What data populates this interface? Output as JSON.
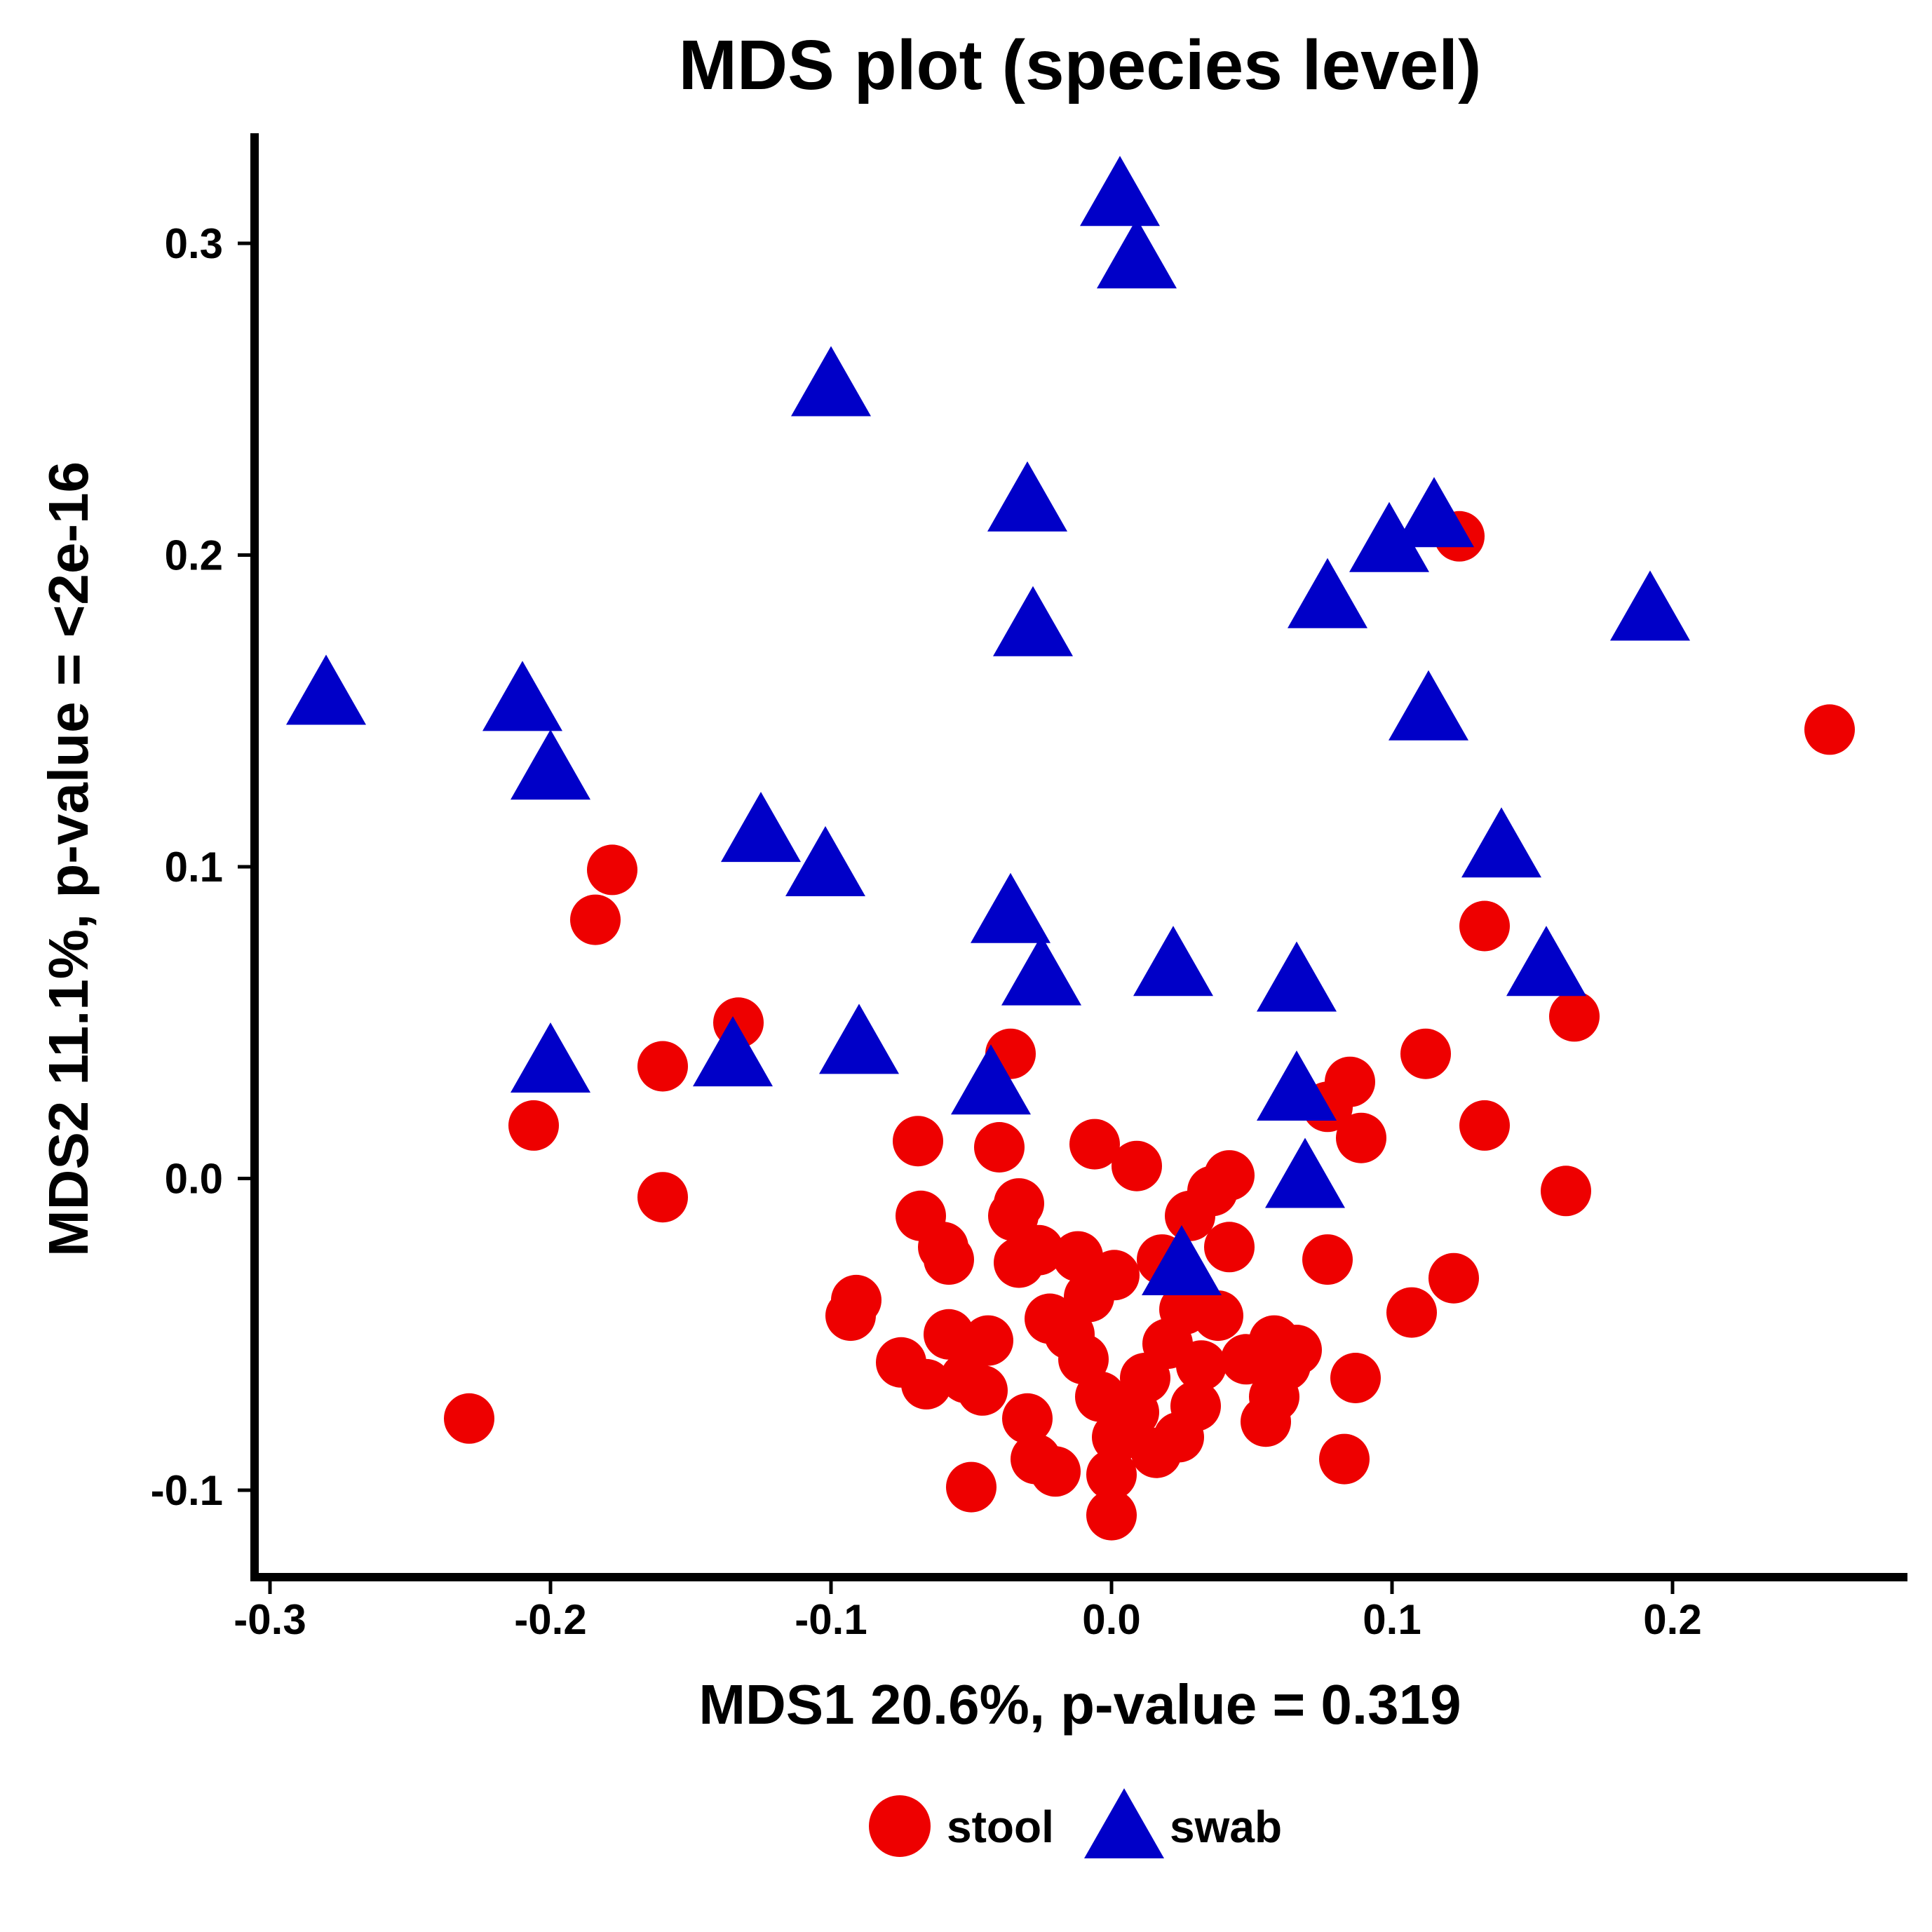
{
  "chart_data": {
    "type": "scatter",
    "title": "MDS plot (species level)",
    "xlabel": "MDS1 20.6%, p-value = 0.319",
    "ylabel": "MDS2 11.1%, p-value = <2e-16",
    "xlim": [
      -0.305,
      0.285
    ],
    "ylim": [
      -0.128,
      0.335
    ],
    "xticks": [
      -0.3,
      -0.2,
      -0.1,
      0.0,
      0.1,
      0.2
    ],
    "xtick_labels": [
      "-0.3",
      "-0.2",
      "-0.1",
      "0.0",
      "0.1",
      "0.2"
    ],
    "yticks": [
      -0.1,
      0.0,
      0.1,
      0.2,
      0.3
    ],
    "ytick_labels": [
      "-0.1",
      "0.0",
      "0.1",
      "0.2",
      "0.3"
    ],
    "grid": false,
    "legend_position": "bottom",
    "series": [
      {
        "name": "stool",
        "marker": "circle",
        "color": "#ee0000",
        "points": [
          [
            0.256,
            0.144
          ],
          [
            0.124,
            0.206
          ],
          [
            0.165,
            0.052
          ],
          [
            0.133,
            0.081
          ],
          [
            0.112,
            0.04
          ],
          [
            0.133,
            0.017
          ],
          [
            0.162,
            -0.004
          ],
          [
            0.122,
            -0.032
          ],
          [
            0.107,
            -0.043
          ],
          [
            0.087,
            -0.064
          ],
          [
            0.083,
            -0.09
          ],
          [
            0.077,
            0.023
          ],
          [
            0.085,
            0.031
          ],
          [
            0.089,
            0.013
          ],
          [
            0.077,
            -0.026
          ],
          [
            0.055,
            -0.078
          ],
          [
            0.062,
            -0.06
          ],
          [
            0.058,
            -0.052
          ],
          [
            0.066,
            -0.055
          ],
          [
            0.058,
            -0.07
          ],
          [
            0.048,
            -0.058
          ],
          [
            0.042,
            0.001
          ],
          [
            0.036,
            -0.004
          ],
          [
            0.042,
            -0.022
          ],
          [
            0.038,
            -0.044
          ],
          [
            0.032,
            -0.06
          ],
          [
            0.03,
            -0.073
          ],
          [
            0.024,
            -0.083
          ],
          [
            0.016,
            -0.088
          ],
          [
            0.008,
            -0.075
          ],
          [
            0.012,
            -0.064
          ],
          [
            0.02,
            -0.053
          ],
          [
            0.026,
            -0.042
          ],
          [
            0.018,
            -0.026
          ],
          [
            0.028,
            -0.012
          ],
          [
            0.009,
            0.004
          ],
          [
            -0.006,
            0.011
          ],
          [
            0.001,
            -0.031
          ],
          [
            -0.008,
            -0.038
          ],
          [
            -0.012,
            -0.025
          ],
          [
            -0.015,
            -0.05
          ],
          [
            -0.01,
            -0.058
          ],
          [
            -0.004,
            -0.07
          ],
          [
            0.002,
            -0.083
          ],
          [
            0.0,
            -0.095
          ],
          [
            0.0,
            -0.108
          ],
          [
            -0.02,
            -0.094
          ],
          [
            -0.027,
            -0.09
          ],
          [
            -0.03,
            -0.077
          ],
          [
            -0.022,
            -0.045
          ],
          [
            -0.026,
            -0.023
          ],
          [
            -0.033,
            -0.027
          ],
          [
            -0.035,
            -0.012
          ],
          [
            -0.033,
            -0.008
          ],
          [
            -0.04,
            0.01
          ],
          [
            -0.036,
            0.04
          ],
          [
            -0.05,
            -0.099
          ],
          [
            -0.046,
            -0.068
          ],
          [
            -0.044,
            -0.052
          ],
          [
            -0.052,
            -0.064
          ],
          [
            -0.058,
            -0.05
          ],
          [
            -0.06,
            -0.022
          ],
          [
            -0.058,
            -0.026
          ],
          [
            -0.068,
            -0.012
          ],
          [
            -0.069,
            0.012
          ],
          [
            -0.066,
            -0.066
          ],
          [
            -0.075,
            -0.059
          ],
          [
            -0.091,
            -0.039
          ],
          [
            -0.093,
            -0.044
          ],
          [
            -0.133,
            0.05
          ],
          [
            -0.16,
            0.036
          ],
          [
            -0.16,
            -0.006
          ],
          [
            -0.178,
            0.099
          ],
          [
            -0.184,
            0.083
          ],
          [
            -0.206,
            0.017
          ],
          [
            -0.229,
            -0.077
          ]
        ]
      },
      {
        "name": "swab",
        "marker": "triangle",
        "color": "#0000c8",
        "points": [
          [
            0.003,
            0.315
          ],
          [
            0.009,
            0.295
          ],
          [
            -0.1,
            0.254
          ],
          [
            -0.03,
            0.217
          ],
          [
            -0.028,
            0.177
          ],
          [
            0.099,
            0.204
          ],
          [
            0.115,
            0.212
          ],
          [
            0.077,
            0.186
          ],
          [
            0.192,
            0.182
          ],
          [
            0.113,
            0.15
          ],
          [
            -0.28,
            0.155
          ],
          [
            -0.21,
            0.153
          ],
          [
            -0.2,
            0.131
          ],
          [
            -0.125,
            0.111
          ],
          [
            -0.102,
            0.1
          ],
          [
            -0.036,
            0.085
          ],
          [
            -0.025,
            0.065
          ],
          [
            0.022,
            0.068
          ],
          [
            0.066,
            0.063
          ],
          [
            0.139,
            0.106
          ],
          [
            0.155,
            0.068
          ],
          [
            -0.2,
            0.037
          ],
          [
            -0.135,
            0.039
          ],
          [
            -0.09,
            0.043
          ],
          [
            -0.043,
            0.03
          ],
          [
            0.066,
            0.028
          ],
          [
            0.069,
            0.0
          ],
          [
            0.025,
            -0.028
          ]
        ]
      }
    ]
  }
}
